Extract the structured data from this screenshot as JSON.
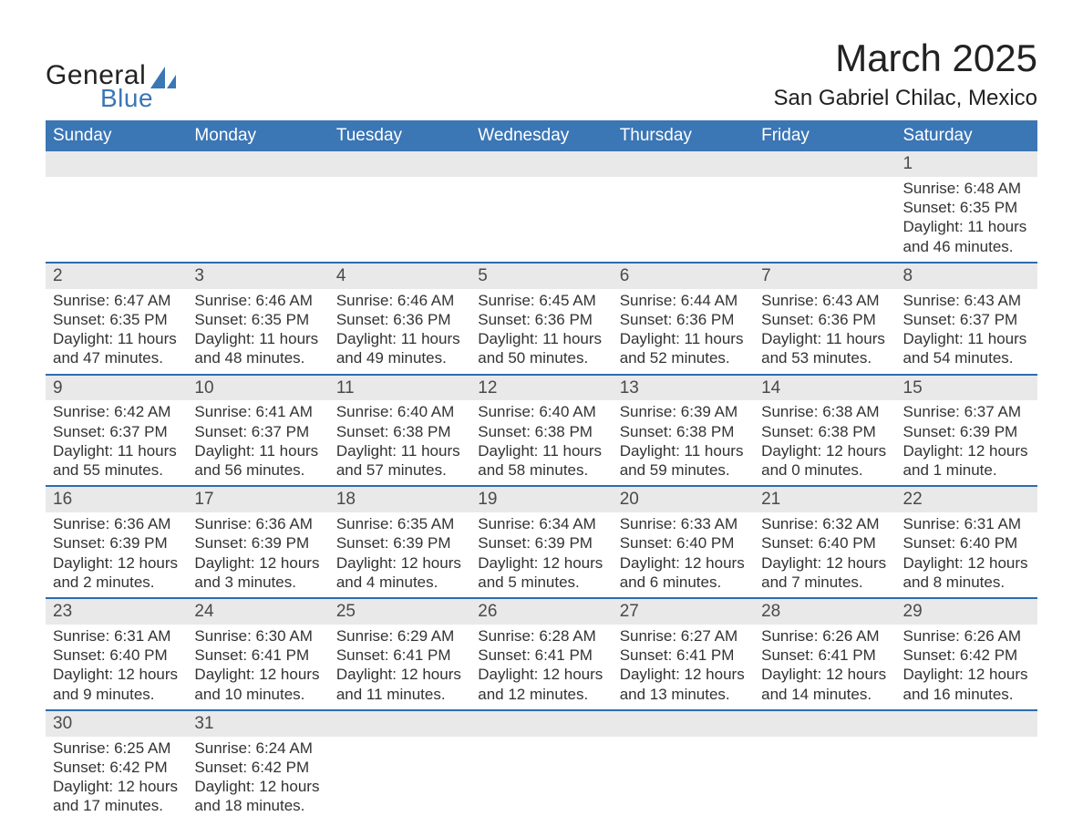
{
  "logo": {
    "word1": "General",
    "word2": "Blue"
  },
  "title": {
    "month": "March 2025",
    "location": "San Gabriel Chilac, Mexico"
  },
  "colors": {
    "header_blue": "#3b76b5",
    "row_sep_blue": "#2c6cb0",
    "daynum_bg": "#e9e9e9",
    "text": "#333333"
  },
  "calendar": {
    "weekday_headers": [
      "Sunday",
      "Monday",
      "Tuesday",
      "Wednesday",
      "Thursday",
      "Friday",
      "Saturday"
    ],
    "weeks": [
      [
        {
          "day": ""
        },
        {
          "day": ""
        },
        {
          "day": ""
        },
        {
          "day": ""
        },
        {
          "day": ""
        },
        {
          "day": ""
        },
        {
          "day": "1",
          "sunrise": "Sunrise: 6:48 AM",
          "sunset": "Sunset: 6:35 PM",
          "daylight": "Daylight: 11 hours and 46 minutes."
        }
      ],
      [
        {
          "day": "2",
          "sunrise": "Sunrise: 6:47 AM",
          "sunset": "Sunset: 6:35 PM",
          "daylight": "Daylight: 11 hours and 47 minutes."
        },
        {
          "day": "3",
          "sunrise": "Sunrise: 6:46 AM",
          "sunset": "Sunset: 6:35 PM",
          "daylight": "Daylight: 11 hours and 48 minutes."
        },
        {
          "day": "4",
          "sunrise": "Sunrise: 6:46 AM",
          "sunset": "Sunset: 6:36 PM",
          "daylight": "Daylight: 11 hours and 49 minutes."
        },
        {
          "day": "5",
          "sunrise": "Sunrise: 6:45 AM",
          "sunset": "Sunset: 6:36 PM",
          "daylight": "Daylight: 11 hours and 50 minutes."
        },
        {
          "day": "6",
          "sunrise": "Sunrise: 6:44 AM",
          "sunset": "Sunset: 6:36 PM",
          "daylight": "Daylight: 11 hours and 52 minutes."
        },
        {
          "day": "7",
          "sunrise": "Sunrise: 6:43 AM",
          "sunset": "Sunset: 6:36 PM",
          "daylight": "Daylight: 11 hours and 53 minutes."
        },
        {
          "day": "8",
          "sunrise": "Sunrise: 6:43 AM",
          "sunset": "Sunset: 6:37 PM",
          "daylight": "Daylight: 11 hours and 54 minutes."
        }
      ],
      [
        {
          "day": "9",
          "sunrise": "Sunrise: 6:42 AM",
          "sunset": "Sunset: 6:37 PM",
          "daylight": "Daylight: 11 hours and 55 minutes."
        },
        {
          "day": "10",
          "sunrise": "Sunrise: 6:41 AM",
          "sunset": "Sunset: 6:37 PM",
          "daylight": "Daylight: 11 hours and 56 minutes."
        },
        {
          "day": "11",
          "sunrise": "Sunrise: 6:40 AM",
          "sunset": "Sunset: 6:38 PM",
          "daylight": "Daylight: 11 hours and 57 minutes."
        },
        {
          "day": "12",
          "sunrise": "Sunrise: 6:40 AM",
          "sunset": "Sunset: 6:38 PM",
          "daylight": "Daylight: 11 hours and 58 minutes."
        },
        {
          "day": "13",
          "sunrise": "Sunrise: 6:39 AM",
          "sunset": "Sunset: 6:38 PM",
          "daylight": "Daylight: 11 hours and 59 minutes."
        },
        {
          "day": "14",
          "sunrise": "Sunrise: 6:38 AM",
          "sunset": "Sunset: 6:38 PM",
          "daylight": "Daylight: 12 hours and 0 minutes."
        },
        {
          "day": "15",
          "sunrise": "Sunrise: 6:37 AM",
          "sunset": "Sunset: 6:39 PM",
          "daylight": "Daylight: 12 hours and 1 minute."
        }
      ],
      [
        {
          "day": "16",
          "sunrise": "Sunrise: 6:36 AM",
          "sunset": "Sunset: 6:39 PM",
          "daylight": "Daylight: 12 hours and 2 minutes."
        },
        {
          "day": "17",
          "sunrise": "Sunrise: 6:36 AM",
          "sunset": "Sunset: 6:39 PM",
          "daylight": "Daylight: 12 hours and 3 minutes."
        },
        {
          "day": "18",
          "sunrise": "Sunrise: 6:35 AM",
          "sunset": "Sunset: 6:39 PM",
          "daylight": "Daylight: 12 hours and 4 minutes."
        },
        {
          "day": "19",
          "sunrise": "Sunrise: 6:34 AM",
          "sunset": "Sunset: 6:39 PM",
          "daylight": "Daylight: 12 hours and 5 minutes."
        },
        {
          "day": "20",
          "sunrise": "Sunrise: 6:33 AM",
          "sunset": "Sunset: 6:40 PM",
          "daylight": "Daylight: 12 hours and 6 minutes."
        },
        {
          "day": "21",
          "sunrise": "Sunrise: 6:32 AM",
          "sunset": "Sunset: 6:40 PM",
          "daylight": "Daylight: 12 hours and 7 minutes."
        },
        {
          "day": "22",
          "sunrise": "Sunrise: 6:31 AM",
          "sunset": "Sunset: 6:40 PM",
          "daylight": "Daylight: 12 hours and 8 minutes."
        }
      ],
      [
        {
          "day": "23",
          "sunrise": "Sunrise: 6:31 AM",
          "sunset": "Sunset: 6:40 PM",
          "daylight": "Daylight: 12 hours and 9 minutes."
        },
        {
          "day": "24",
          "sunrise": "Sunrise: 6:30 AM",
          "sunset": "Sunset: 6:41 PM",
          "daylight": "Daylight: 12 hours and 10 minutes."
        },
        {
          "day": "25",
          "sunrise": "Sunrise: 6:29 AM",
          "sunset": "Sunset: 6:41 PM",
          "daylight": "Daylight: 12 hours and 11 minutes."
        },
        {
          "day": "26",
          "sunrise": "Sunrise: 6:28 AM",
          "sunset": "Sunset: 6:41 PM",
          "daylight": "Daylight: 12 hours and 12 minutes."
        },
        {
          "day": "27",
          "sunrise": "Sunrise: 6:27 AM",
          "sunset": "Sunset: 6:41 PM",
          "daylight": "Daylight: 12 hours and 13 minutes."
        },
        {
          "day": "28",
          "sunrise": "Sunrise: 6:26 AM",
          "sunset": "Sunset: 6:41 PM",
          "daylight": "Daylight: 12 hours and 14 minutes."
        },
        {
          "day": "29",
          "sunrise": "Sunrise: 6:26 AM",
          "sunset": "Sunset: 6:42 PM",
          "daylight": "Daylight: 12 hours and 16 minutes."
        }
      ],
      [
        {
          "day": "30",
          "sunrise": "Sunrise: 6:25 AM",
          "sunset": "Sunset: 6:42 PM",
          "daylight": "Daylight: 12 hours and 17 minutes."
        },
        {
          "day": "31",
          "sunrise": "Sunrise: 6:24 AM",
          "sunset": "Sunset: 6:42 PM",
          "daylight": "Daylight: 12 hours and 18 minutes."
        },
        {
          "day": ""
        },
        {
          "day": ""
        },
        {
          "day": ""
        },
        {
          "day": ""
        },
        {
          "day": ""
        }
      ]
    ]
  }
}
